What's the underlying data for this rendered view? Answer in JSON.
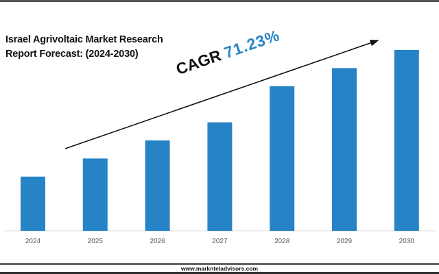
{
  "title_line1": "Israel Agrivoltaic Market Research",
  "title_line2": "Report Forecast: (2024-2030)",
  "cagr": {
    "label": "CAGR",
    "value": "71.23%"
  },
  "footer": "www.marknteladvisors.com",
  "colors": {
    "bar": "#2683c6",
    "cagr_value": "#2683c6"
  },
  "chart_data": {
    "type": "bar",
    "title": "Israel Agrivoltaic Market Research Report Forecast: (2024-2030)",
    "categories": [
      "2024",
      "2025",
      "2026",
      "2027",
      "2028",
      "2029",
      "2030"
    ],
    "values": [
      30,
      40,
      50,
      60,
      80,
      90,
      100
    ],
    "value_note": "relative bar heights (no y-axis shown)",
    "xlabel": "",
    "ylabel": "",
    "ylim": [
      0,
      100
    ],
    "grid": false,
    "annotation": "CAGR 71.23%"
  }
}
